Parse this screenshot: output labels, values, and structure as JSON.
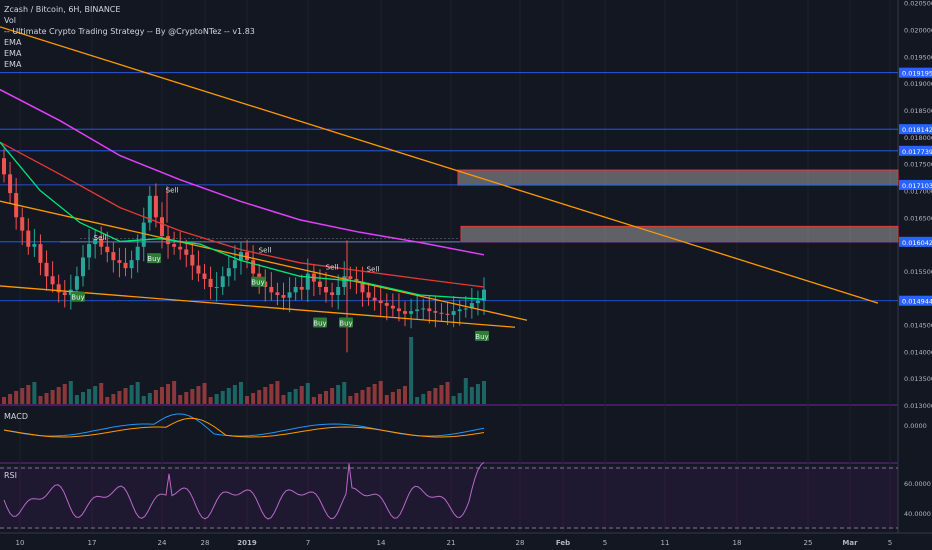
{
  "header": {
    "title": "Zcash / Bitcoin, 6H, BINANCE",
    "indicators": [
      "Vol",
      "-- Ultimate Crypto Trading Strategy -- By @CryptoNTez -- v1.83",
      "EMA",
      "EMA",
      "EMA"
    ]
  },
  "panes": {
    "macd_label": "MACD",
    "rsi_label": "RSI",
    "macd_zero": "0.0000",
    "rsi_60": "60.0000",
    "rsi_40": "40.0000"
  },
  "colors": {
    "background": "#131722",
    "up": "#26a69a",
    "down": "#ef5350",
    "trendline": "#ff9800",
    "ema_fast": "#00e676",
    "ema_mid": "#e53935",
    "ema_slow": "#e040fb",
    "hline": "#2962ff",
    "zone": "#9e9e9e"
  },
  "chart_data": {
    "type": "candlestick",
    "y_axis_ticks": [
      "0.020500",
      "0.020000",
      "0.019500",
      "0.019000",
      "0.018500",
      "0.018000",
      "0.017500",
      "0.017000",
      "0.016500",
      "0.016000",
      "0.015500",
      "0.015000",
      "0.014500",
      "0.014000",
      "0.013500",
      "0.013000"
    ],
    "y_range": [
      0.013,
      0.02055
    ],
    "x_axis_ticks": [
      "10",
      "17",
      "24",
      "28",
      "2019",
      "7",
      "14",
      "21",
      "28",
      "Feb",
      "5",
      "11",
      "18",
      "25",
      "Mar",
      "5"
    ],
    "price_levels": [
      {
        "label": "0.019195",
        "value": 0.019195
      },
      {
        "label": "0.018142",
        "value": 0.018142
      },
      {
        "label": "0.017739",
        "value": 0.017739
      },
      {
        "label": "0.017103",
        "value": 0.017103
      },
      {
        "label": "0.016042",
        "value": 0.016042
      },
      {
        "label": "0.014944",
        "value": 0.014944,
        "current": true
      }
    ],
    "supply_zones": [
      {
        "low": 0.0171,
        "high": 0.01738
      },
      {
        "low": 0.01604,
        "high": 0.01633
      }
    ],
    "signals": [
      {
        "label": "Sell",
        "date": "Dec 23",
        "price": 0.017
      },
      {
        "label": "Sell",
        "date": "Dec 17",
        "price": 0.01611
      },
      {
        "label": "Sell",
        "date": "Dec 29",
        "price": 0.01588
      },
      {
        "label": "Sell",
        "date": "Jan 9",
        "price": 0.01556
      },
      {
        "label": "Sell",
        "date": "Jan 12",
        "price": 0.01553
      },
      {
        "label": "Buy",
        "date": "Dec 14",
        "price": 0.015
      },
      {
        "label": "Buy",
        "date": "Dec 21",
        "price": 0.01572
      },
      {
        "label": "Buy",
        "date": "Dec 31",
        "price": 0.01528
      },
      {
        "label": "Buy",
        "date": "Jan 8",
        "price": 0.01452
      },
      {
        "label": "Buy",
        "date": "Jan 10",
        "price": 0.01452
      },
      {
        "label": "Buy",
        "date": "Jan 24",
        "price": 0.01427
      }
    ],
    "close_series": [
      0.0173,
      0.01695,
      0.0165,
      0.01625,
      0.01595,
      0.016,
      0.01565,
      0.0154,
      0.01525,
      0.0151,
      0.01505,
      0.01515,
      0.0154,
      0.01575,
      0.016,
      0.0161,
      0.01595,
      0.01585,
      0.0157,
      0.01565,
      0.01555,
      0.0157,
      0.01595,
      0.0164,
      0.0169,
      0.0165,
      0.01615,
      0.016,
      0.01595,
      0.0159,
      0.0158,
      0.0156,
      0.01545,
      0.01535,
      0.0152,
      0.0152,
      0.0154,
      0.01555,
      0.0157,
      0.01585,
      0.0157,
      0.01545,
      0.0153,
      0.0152,
      0.0151,
      0.01505,
      0.015,
      0.0151,
      0.0152,
      0.01515,
      0.01545,
      0.0153,
      0.0152,
      0.0151,
      0.01505,
      0.0152,
      0.0154,
      0.01535,
      0.0153,
      0.0151,
      0.015,
      0.01495,
      0.0149,
      0.01485,
      0.0148,
      0.01475,
      0.0147,
      0.01475,
      0.01478,
      0.0148,
      0.01475,
      0.01472,
      0.0147,
      0.01468,
      0.01475,
      0.01478,
      0.0148,
      0.0149,
      0.01495,
      0.01515
    ]
  }
}
